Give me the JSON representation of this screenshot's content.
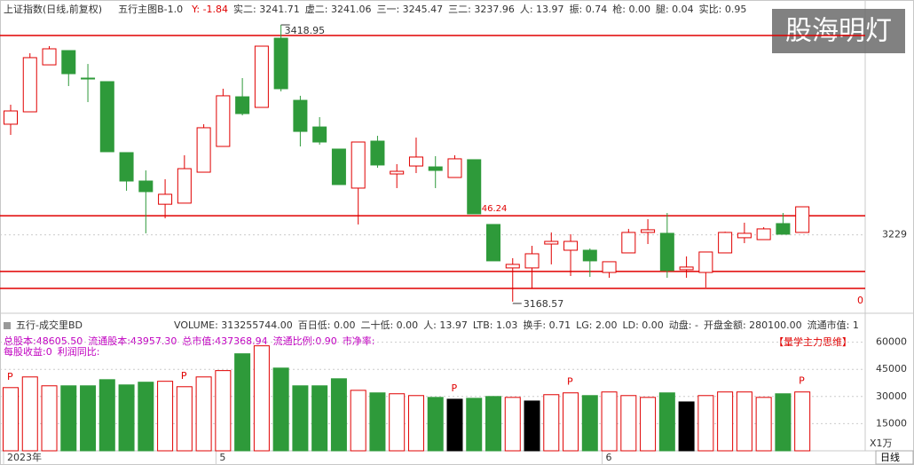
{
  "chart_data": [
    {
      "type": "candlestick",
      "title": "上证指数(日线,前复权)",
      "indicator": "五行主图B-1.0",
      "header_items": [
        {
          "text": "Y: -1.84",
          "color": "#e00000"
        },
        {
          "text": "实二: 3241.71",
          "color": "#333333"
        },
        {
          "text": "虚二: 3241.06",
          "color": "#333333"
        },
        {
          "text": "三一: 3245.47",
          "color": "#333333"
        },
        {
          "text": "三二: 3237.96",
          "color": "#333333"
        },
        {
          "text": "人: 13.97",
          "color": "#333333"
        },
        {
          "text": "振: 0.74",
          "color": "#333333"
        },
        {
          "text": "枪: 0.00",
          "color": "#333333"
        },
        {
          "text": "腿: 0.04",
          "color": "#333333"
        },
        {
          "text": "实比: 0.95",
          "color": "#333333"
        }
      ],
      "categories": [
        "2023年",
        null,
        null,
        null,
        null,
        null,
        null,
        null,
        null,
        null,
        null,
        "5",
        null,
        null,
        null,
        null,
        null,
        null,
        null,
        null,
        null,
        null,
        null,
        null,
        null,
        null,
        null,
        null,
        null,
        null,
        null,
        "6",
        null,
        null,
        null,
        null,
        null,
        null,
        null,
        null,
        null,
        null
      ],
      "candles": [
        {
          "open": 3329.1,
          "high": 3346.7,
          "low": 3319.4,
          "close": 3341.1
        },
        {
          "open": 3340.3,
          "high": 3393.3,
          "low": 3340.3,
          "close": 3389.3
        },
        {
          "open": 3382.8,
          "high": 3399.7,
          "low": 3382.8,
          "close": 3397.3
        },
        {
          "open": 3395.7,
          "high": 3395.7,
          "low": 3363.6,
          "close": 3374.8
        },
        {
          "open": 3370.8,
          "high": 3383.6,
          "low": 3349.1,
          "close": 3370.0
        },
        {
          "open": 3367.6,
          "high": 3367.6,
          "low": 3304.2,
          "close": 3304.2
        },
        {
          "open": 3303.4,
          "high": 3303.4,
          "low": 3268.9,
          "close": 3277.7
        },
        {
          "open": 3277.7,
          "high": 3287.3,
          "low": 3230.4,
          "close": 3268.1
        },
        {
          "open": 3256.7,
          "high": 3279.3,
          "low": 3244.0,
          "close": 3265.7
        },
        {
          "open": 3257.7,
          "high": 3301.0,
          "low": 3257.7,
          "close": 3288.9
        },
        {
          "open": 3285.7,
          "high": 3329.1,
          "low": 3285.7,
          "close": 3325.9
        },
        {
          "open": 3309.0,
          "high": 3361.2,
          "low": 3309.0,
          "close": 3354.8
        },
        {
          "open": 3353.9,
          "high": 3370.8,
          "low": 3337.1,
          "close": 3338.7
        },
        {
          "open": 3344.3,
          "high": 3399.7,
          "low": 3344.3,
          "close": 3399.7
        },
        {
          "open": 3406.9,
          "high": 3418.95,
          "low": 3358.8,
          "close": 3361.2
        },
        {
          "open": 3350.7,
          "high": 3354.8,
          "low": 3309.0,
          "close": 3322.6
        },
        {
          "open": 3326.6,
          "high": 3335.5,
          "low": 3310.6,
          "close": 3313.0
        },
        {
          "open": 3306.6,
          "high": 3306.6,
          "low": 3274.5,
          "close": 3274.5
        },
        {
          "open": 3271.3,
          "high": 3313.0,
          "low": 3238.4,
          "close": 3313.0
        },
        {
          "open": 3313.8,
          "high": 3318.6,
          "low": 3289.7,
          "close": 3292.2
        },
        {
          "open": 3284.1,
          "high": 3293.0,
          "low": 3271.3,
          "close": 3286.5
        },
        {
          "open": 3291.3,
          "high": 3317.0,
          "low": 3284.9,
          "close": 3299.4
        },
        {
          "open": 3290.5,
          "high": 3300.2,
          "low": 3271.3,
          "close": 3287.3
        },
        {
          "open": 3280.9,
          "high": 3301.0,
          "low": 3280.9,
          "close": 3297.8
        },
        {
          "open": 3297.0,
          "high": 3297.0,
          "low": 3248.0,
          "close": 3248.0
        },
        {
          "open": 3238.4,
          "high": 3238.4,
          "low": 3205.5,
          "close": 3205.5
        },
        {
          "open": 3199.1,
          "high": 3207.9,
          "low": 3168.57,
          "close": 3202.3
        },
        {
          "open": 3199.1,
          "high": 3219.1,
          "low": 3180.6,
          "close": 3211.9
        },
        {
          "open": 3220.7,
          "high": 3231.2,
          "low": 3202.3,
          "close": 3223.1
        },
        {
          "open": 3215.1,
          "high": 3229.6,
          "low": 3191.8,
          "close": 3223.1
        },
        {
          "open": 3215.1,
          "high": 3216.7,
          "low": 3191.0,
          "close": 3205.5
        },
        {
          "open": 3195.0,
          "high": 3204.7,
          "low": 3190.2,
          "close": 3204.7
        },
        {
          "open": 3212.7,
          "high": 3234.4,
          "low": 3212.7,
          "close": 3231.2
        },
        {
          "open": 3231.2,
          "high": 3243.2,
          "low": 3220.7,
          "close": 3233.6
        },
        {
          "open": 3230.4,
          "high": 3248.8,
          "low": 3190.2,
          "close": 3196.7
        },
        {
          "open": 3197.5,
          "high": 3209.5,
          "low": 3190.2,
          "close": 3199.9
        },
        {
          "open": 3195.0,
          "high": 3213.5,
          "low": 3181.4,
          "close": 3213.5
        },
        {
          "open": 3212.7,
          "high": 3231.9,
          "low": 3212.7,
          "close": 3231.2
        },
        {
          "open": 3226.4,
          "high": 3240.0,
          "low": 3221.5,
          "close": 3230.4
        },
        {
          "open": 3224.7,
          "high": 3236.0,
          "low": 3224.7,
          "close": 3234.4
        },
        {
          "open": 3239.2,
          "high": 3248.8,
          "low": 3229.6,
          "close": 3229.6
        },
        {
          "open": 3231.2,
          "high": 3254.4,
          "low": 3231.2,
          "close": 3254.4
        }
      ],
      "up_color": "#e00000",
      "down_color": "#2e9a3a",
      "ylim": [
        3160.5,
        3427
      ],
      "yticks": [
        3229
      ],
      "hlines": [
        3409.3,
        3246.24,
        3195.9,
        3180.6
      ],
      "hline_color": "#e00000",
      "axis_note": "0",
      "watermark": "股海明灯",
      "period": "日线"
    },
    {
      "type": "bar",
      "title": "五行-成交里BD",
      "header_items": [
        {
          "text": "VOLUME: 313255744.00",
          "color": "#333333"
        },
        {
          "text": "百日低: 0.00",
          "color": "#333333"
        },
        {
          "text": "二十低: 0.00",
          "color": "#333333"
        },
        {
          "text": "人: 13.97",
          "color": "#333333"
        },
        {
          "text": "LTB: 1.03",
          "color": "#333333"
        },
        {
          "text": "换手: 0.71",
          "color": "#333333"
        },
        {
          "text": "LG: 2.00",
          "color": "#333333"
        },
        {
          "text": "LD: 0.00",
          "color": "#333333"
        },
        {
          "text": "动盘: -",
          "color": "#333333"
        },
        {
          "text": "开盘金额: 280100.00",
          "color": "#333333"
        },
        {
          "text": "流通市值: 1",
          "color": "#333333"
        }
      ],
      "overlay_items": [
        "总股本:48605.50",
        "流通股本:43957.30",
        "总市值:437368.94",
        "流通比例:0.90",
        "市净率:"
      ],
      "overlay_items2": [
        "每股收益:0",
        "利润同比:"
      ],
      "tag": "【量学主力思维】",
      "unit": "X1万",
      "values": [
        34900,
        40800,
        35900,
        35900,
        35900,
        39300,
        36400,
        37900,
        38400,
        35400,
        40800,
        44300,
        53600,
        58000,
        45700,
        35900,
        35900,
        39800,
        33400,
        32000,
        31500,
        30500,
        29500,
        28500,
        29000,
        30000,
        29500,
        27500,
        31000,
        32000,
        30500,
        32500,
        30500,
        29500,
        32000,
        27000,
        30500,
        32500,
        32500,
        29500,
        31500,
        32500
      ],
      "colors": [
        "#e00000",
        "#e00000",
        "#e00000",
        "#2e9a3a",
        "#2e9a3a",
        "#2e9a3a",
        "#2e9a3a",
        "#2e9a3a",
        "#e00000",
        "#e00000",
        "#e00000",
        "#e00000",
        "#2e9a3a",
        "#e00000",
        "#2e9a3a",
        "#2e9a3a",
        "#2e9a3a",
        "#2e9a3a",
        "#e00000",
        "#2e9a3a",
        "#e00000",
        "#e00000",
        "#2e9a3a",
        "#000000",
        "#2e9a3a",
        "#2e9a3a",
        "#e00000",
        "#000000",
        "#e00000",
        "#e00000",
        "#2e9a3a",
        "#e00000",
        "#e00000",
        "#e00000",
        "#2e9a3a",
        "#000000",
        "#e00000",
        "#e00000",
        "#e00000",
        "#e00000",
        "#2e9a3a",
        "#e00000"
      ],
      "markers": [
        "P",
        null,
        null,
        null,
        null,
        null,
        null,
        null,
        null,
        "P",
        null,
        null,
        null,
        null,
        null,
        null,
        null,
        null,
        null,
        null,
        null,
        null,
        null,
        "P",
        null,
        null,
        null,
        null,
        null,
        "P",
        null,
        null,
        null,
        null,
        null,
        null,
        null,
        null,
        null,
        null,
        null,
        "P"
      ],
      "ylim": [
        0,
        75000
      ],
      "yticks": [
        15000,
        30000,
        45000,
        60000
      ]
    }
  ]
}
